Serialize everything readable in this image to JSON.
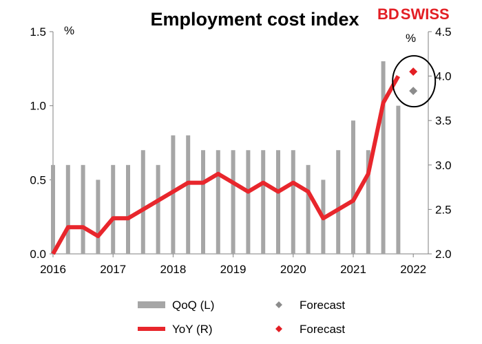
{
  "chart_data": {
    "type": "bar",
    "title": "Employment cost index",
    "brand": {
      "part1": "BD",
      "part2": "SWISS",
      "part1_color": "#e31e24",
      "part2_color": "#e31e24"
    },
    "left_axis": {
      "unit": "%",
      "min": 0.0,
      "max": 1.5,
      "ticks": [
        "0.0",
        "0.5",
        "1.0",
        "1.5"
      ]
    },
    "right_axis": {
      "unit": "%",
      "min": 2.0,
      "max": 4.5,
      "ticks": [
        "2.0",
        "2.5",
        "3.0",
        "3.5",
        "4.0",
        "4.5"
      ]
    },
    "x_axis": {
      "min": 2016,
      "max": 2022.25,
      "ticks": [
        "2016",
        "2017",
        "2018",
        "2019",
        "2020",
        "2021",
        "2022"
      ]
    },
    "series": [
      {
        "name": "QoQ (L)",
        "kind": "bar",
        "axis": "left",
        "color": "#a6a6a6",
        "points": [
          {
            "x": 2016.0,
            "y": 0.6
          },
          {
            "x": 2016.25,
            "y": 0.6
          },
          {
            "x": 2016.5,
            "y": 0.6
          },
          {
            "x": 2016.75,
            "y": 0.5
          },
          {
            "x": 2017.0,
            "y": 0.6
          },
          {
            "x": 2017.25,
            "y": 0.6
          },
          {
            "x": 2017.5,
            "y": 0.7
          },
          {
            "x": 2017.75,
            "y": 0.6
          },
          {
            "x": 2018.0,
            "y": 0.8
          },
          {
            "x": 2018.25,
            "y": 0.8
          },
          {
            "x": 2018.5,
            "y": 0.7
          },
          {
            "x": 2018.75,
            "y": 0.7
          },
          {
            "x": 2019.0,
            "y": 0.7
          },
          {
            "x": 2019.25,
            "y": 0.7
          },
          {
            "x": 2019.5,
            "y": 0.7
          },
          {
            "x": 2019.75,
            "y": 0.7
          },
          {
            "x": 2020.0,
            "y": 0.7
          },
          {
            "x": 2020.25,
            "y": 0.6
          },
          {
            "x": 2020.5,
            "y": 0.5
          },
          {
            "x": 2020.75,
            "y": 0.7
          },
          {
            "x": 2021.0,
            "y": 0.9
          },
          {
            "x": 2021.25,
            "y": 0.7
          },
          {
            "x": 2021.5,
            "y": 1.3
          },
          {
            "x": 2021.75,
            "y": 1.0
          }
        ]
      },
      {
        "name": "YoY (R)",
        "kind": "line",
        "axis": "right",
        "color": "#e8262c",
        "points": [
          {
            "x": 2016.0,
            "y": 2.0
          },
          {
            "x": 2016.25,
            "y": 2.3
          },
          {
            "x": 2016.5,
            "y": 2.3
          },
          {
            "x": 2016.75,
            "y": 2.2
          },
          {
            "x": 2017.0,
            "y": 2.4
          },
          {
            "x": 2017.25,
            "y": 2.4
          },
          {
            "x": 2017.5,
            "y": 2.5
          },
          {
            "x": 2017.75,
            "y": 2.6
          },
          {
            "x": 2018.0,
            "y": 2.7
          },
          {
            "x": 2018.25,
            "y": 2.8
          },
          {
            "x": 2018.5,
            "y": 2.8
          },
          {
            "x": 2018.75,
            "y": 2.9
          },
          {
            "x": 2019.0,
            "y": 2.8
          },
          {
            "x": 2019.25,
            "y": 2.7
          },
          {
            "x": 2019.5,
            "y": 2.8
          },
          {
            "x": 2019.75,
            "y": 2.7
          },
          {
            "x": 2020.0,
            "y": 2.8
          },
          {
            "x": 2020.25,
            "y": 2.7
          },
          {
            "x": 2020.5,
            "y": 2.4
          },
          {
            "x": 2020.75,
            "y": 2.5
          },
          {
            "x": 2021.0,
            "y": 2.6
          },
          {
            "x": 2021.25,
            "y": 2.9
          },
          {
            "x": 2021.5,
            "y": 3.7
          },
          {
            "x": 2021.75,
            "y": 4.0
          }
        ]
      },
      {
        "name": "Forecast",
        "kind": "marker",
        "axis": "left",
        "color": "#8c8c8c",
        "points": [
          {
            "x": 2022.0,
            "y": 1.1
          }
        ]
      },
      {
        "name": "Forecast",
        "kind": "marker",
        "axis": "right",
        "color": "#e31e24",
        "points": [
          {
            "x": 2022.0,
            "y": 4.05
          }
        ]
      }
    ],
    "legend": {
      "placement": "bottom",
      "items": [
        {
          "label": "QoQ (L)",
          "symbol": "bar",
          "color": "#a6a6a6"
        },
        {
          "label": "Forecast",
          "symbol": "diamond",
          "color": "#8c8c8c"
        },
        {
          "label": "YoY (R)",
          "symbol": "line",
          "color": "#e8262c"
        },
        {
          "label": "Forecast",
          "symbol": "diamond",
          "color": "#e31e24"
        }
      ]
    },
    "grid": false
  }
}
